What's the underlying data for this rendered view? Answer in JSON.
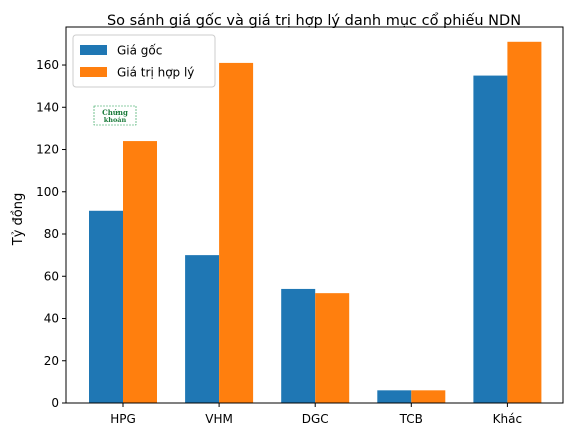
{
  "chart_data": {
    "type": "bar",
    "title": "So sánh giá gốc và giá trị hợp lý danh mục cổ phiếu NDN",
    "xlabel": "",
    "ylabel": "Tỷ đồng",
    "categories": [
      "HPG",
      "VHM",
      "DGC",
      "TCB",
      "Khác"
    ],
    "series": [
      {
        "name": "Giá gốc",
        "color": "#1f77b4",
        "values": [
          91,
          70,
          54,
          6,
          155
        ]
      },
      {
        "name": "Giá trị hợp lý",
        "color": "#ff7f0e",
        "values": [
          124,
          161,
          52,
          6,
          171
        ]
      }
    ],
    "ylim": [
      0,
      178
    ],
    "yticks": [
      0,
      20,
      40,
      60,
      80,
      100,
      120,
      140,
      160
    ],
    "grid": false,
    "legend_position": "top-left"
  },
  "watermark": {
    "lines": [
      "Chứng",
      "khoán"
    ]
  }
}
